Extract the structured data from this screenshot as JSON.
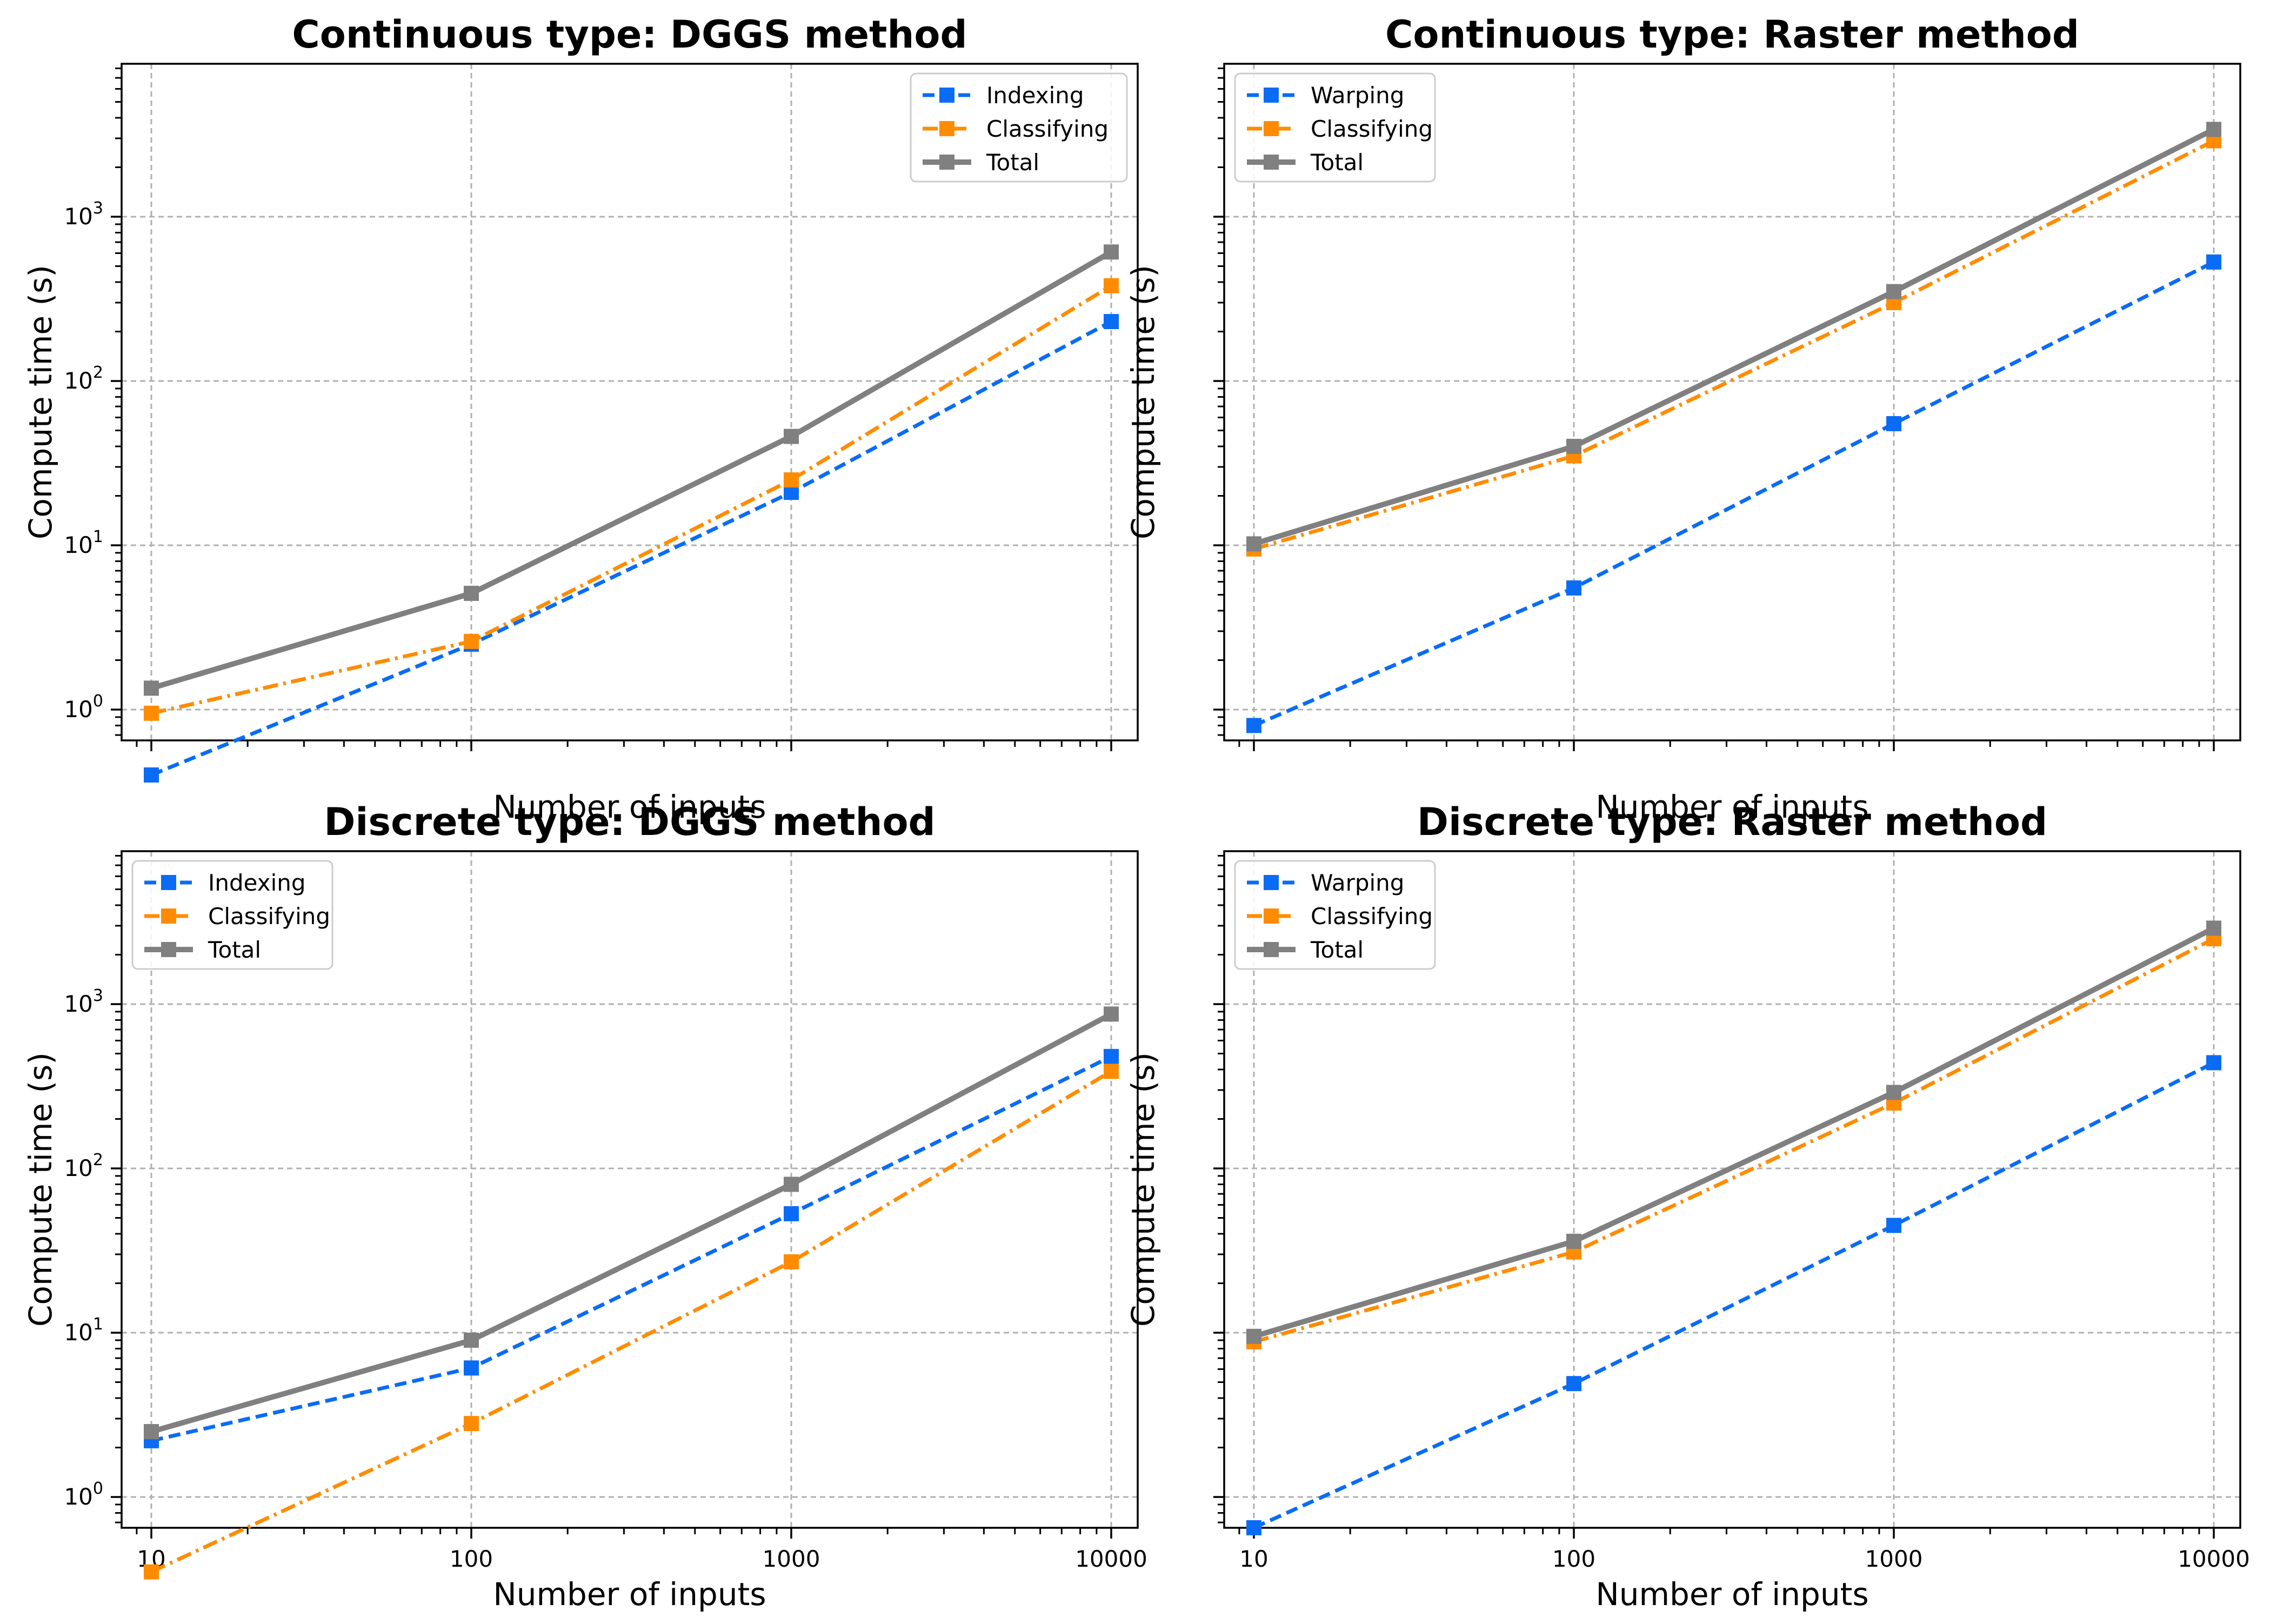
{
  "colors": {
    "indexing": "#0a6cf5",
    "classifying": "#ff8c00",
    "total": "#808080",
    "grid": "#b0b0b0"
  },
  "chart_data": [
    {
      "type": "line",
      "title": "Continuous type: DGGS method",
      "xlabel": "Number of inputs",
      "ylabel": "Compute time (s)",
      "xscale": "log",
      "yscale": "log",
      "x": [
        10,
        100,
        1000,
        10000
      ],
      "xtick_labels": [],
      "ytick_labels": [
        "10^0",
        "10^1",
        "10^2",
        "10^3"
      ],
      "show_yticklabels": true,
      "show_xticklabels": false,
      "ylim": [
        0.27,
        3500
      ],
      "grid": true,
      "legend_position": "top-right",
      "series": [
        {
          "name": "Indexing",
          "style": "dashed",
          "color_key": "indexing",
          "values": [
            0.4,
            2.5,
            21,
            230
          ]
        },
        {
          "name": "Classifying",
          "style": "dashdot",
          "color_key": "classifying",
          "values": [
            0.95,
            2.6,
            25,
            380
          ]
        },
        {
          "name": "Total",
          "style": "solid",
          "color_key": "total",
          "values": [
            1.35,
            5.1,
            46,
            610
          ]
        }
      ]
    },
    {
      "type": "line",
      "title": "Continuous type: Raster method",
      "xlabel": "Number of inputs",
      "ylabel": "Compute time (s)",
      "xscale": "log",
      "yscale": "log",
      "x": [
        10,
        100,
        1000,
        10000
      ],
      "xtick_labels": [],
      "ytick_labels": [],
      "show_yticklabels": false,
      "show_xticklabels": false,
      "ylim": [
        0.27,
        3500
      ],
      "grid": true,
      "legend_position": "top-left",
      "series": [
        {
          "name": "Warping",
          "style": "dashed",
          "color_key": "indexing",
          "values": [
            0.8,
            5.5,
            55,
            530
          ]
        },
        {
          "name": "Classifying",
          "style": "dashdot",
          "color_key": "classifying",
          "values": [
            9.5,
            35,
            300,
            2900
          ]
        },
        {
          "name": "Total",
          "style": "solid",
          "color_key": "total",
          "values": [
            10.2,
            40,
            350,
            3400
          ]
        }
      ]
    },
    {
      "type": "line",
      "title": "Discrete type: DGGS method",
      "xlabel": "Number of inputs",
      "ylabel": "Compute time (s)",
      "xscale": "log",
      "yscale": "log",
      "x": [
        10,
        100,
        1000,
        10000
      ],
      "xtick_labels": [
        "10",
        "100",
        "1000",
        "10000"
      ],
      "ytick_labels": [
        "10^0",
        "10^1",
        "10^2",
        "10^3"
      ],
      "show_yticklabels": true,
      "show_xticklabels": true,
      "ylim": [
        0.27,
        3500
      ],
      "grid": true,
      "legend_position": "top-left",
      "series": [
        {
          "name": "Indexing",
          "style": "dashed",
          "color_key": "indexing",
          "values": [
            2.2,
            6.1,
            53,
            480
          ]
        },
        {
          "name": "Classifying",
          "style": "dashdot",
          "color_key": "classifying",
          "values": [
            0.35,
            2.8,
            27,
            390
          ]
        },
        {
          "name": "Total",
          "style": "solid",
          "color_key": "total",
          "values": [
            2.5,
            9.0,
            80,
            870
          ]
        }
      ]
    },
    {
      "type": "line",
      "title": "Discrete type: Raster method",
      "xlabel": "Number of inputs",
      "ylabel": "Compute time (s)",
      "xscale": "log",
      "yscale": "log",
      "x": [
        10,
        100,
        1000,
        10000
      ],
      "xtick_labels": [
        "10",
        "100",
        "1000",
        "10000"
      ],
      "ytick_labels": [],
      "show_yticklabels": false,
      "show_xticklabels": true,
      "ylim": [
        0.27,
        3500
      ],
      "grid": true,
      "legend_position": "top-left",
      "series": [
        {
          "name": "Warping",
          "style": "dashed",
          "color_key": "indexing",
          "values": [
            0.65,
            4.9,
            45,
            440
          ]
        },
        {
          "name": "Classifying",
          "style": "dashdot",
          "color_key": "classifying",
          "values": [
            8.8,
            31,
            250,
            2500
          ]
        },
        {
          "name": "Total",
          "style": "solid",
          "color_key": "total",
          "values": [
            9.5,
            36,
            290,
            2900
          ]
        }
      ]
    }
  ]
}
